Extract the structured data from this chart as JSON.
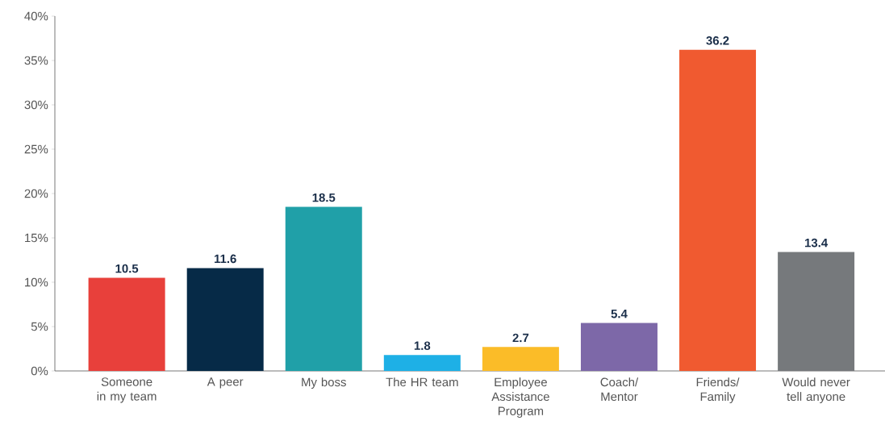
{
  "chart_data": {
    "type": "bar",
    "categories": [
      "Someone in my team",
      "A peer",
      "My boss",
      "The HR team",
      "Employee Assistance Program",
      "Coach/ Mentor",
      "Friends/ Family",
      "Would never tell anyone"
    ],
    "values": [
      10.5,
      11.6,
      18.5,
      1.8,
      2.7,
      5.4,
      36.2,
      13.4
    ],
    "value_labels": [
      "10.5",
      "11.6",
      "18.5",
      "1.8",
      "2.7",
      "5.4",
      "36.2",
      "13.4"
    ],
    "colors": [
      "#e8403b",
      "#062a47",
      "#20a0a8",
      "#1eb0e6",
      "#fbbc28",
      "#7d68a8",
      "#f05a30",
      "#76797c"
    ],
    "ylim": [
      0,
      40
    ],
    "yticks": [
      {
        "value": 0,
        "label": "0%"
      },
      {
        "value": 5,
        "label": "5%"
      },
      {
        "value": 10,
        "label": "10%"
      },
      {
        "value": 15,
        "label": "15%"
      },
      {
        "value": 20,
        "label": "20%"
      },
      {
        "value": 25,
        "label": "25%"
      },
      {
        "value": 30,
        "label": "30%"
      },
      {
        "value": 35,
        "label": "35%"
      },
      {
        "value": 40,
        "label": "40%"
      }
    ],
    "grid": false
  }
}
